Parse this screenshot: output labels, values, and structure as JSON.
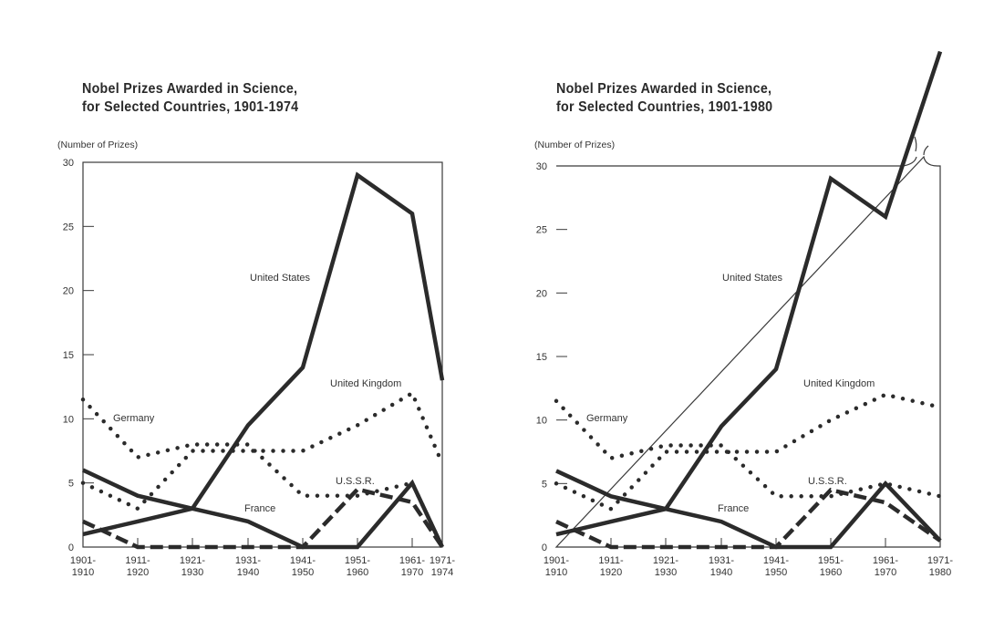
{
  "chart_data": [
    {
      "type": "line",
      "title_line1": "Nobel Prizes Awarded in Science,",
      "title_line2": "for Selected Countries, 1901-1974",
      "ylabel": "(Number of Prizes)",
      "xlabel": "",
      "ylim": [
        0,
        30
      ],
      "yticks": [
        "0",
        "5",
        "10",
        "15",
        "20",
        "25",
        "30"
      ],
      "categories": [
        [
          "1901-",
          "1910"
        ],
        [
          "1911-",
          "1920"
        ],
        [
          "1921-",
          "1930"
        ],
        [
          "1931-",
          "1940"
        ],
        [
          "1941-",
          "1950"
        ],
        [
          "1951-",
          "1960"
        ],
        [
          "1961-",
          "1970"
        ],
        [
          "1971-",
          "1974"
        ]
      ],
      "grid": false,
      "series": [
        {
          "name": "United States",
          "style": "solid",
          "values": [
            1,
            2,
            3,
            9.5,
            14,
            29,
            26,
            13
          ]
        },
        {
          "name": "France",
          "style": "solid",
          "values": [
            6,
            4,
            3,
            2,
            0,
            0,
            5,
            0
          ]
        },
        {
          "name": "Germany",
          "style": "dotted",
          "values": [
            11.5,
            7,
            8,
            8,
            4,
            4,
            5,
            0
          ]
        },
        {
          "name": "United Kingdom",
          "style": "dotted",
          "values": [
            5,
            3,
            7.5,
            7.5,
            7.5,
            9.5,
            12,
            6.5
          ]
        },
        {
          "name": "U.S.S.R.",
          "style": "dashed",
          "values": [
            2,
            0,
            0,
            0,
            0,
            4.5,
            3.5,
            0
          ]
        }
      ]
    },
    {
      "type": "line",
      "title_line1": "Nobel Prizes Awarded in Science,",
      "title_line2": "for Selected Countries, 1901-1980",
      "ylabel": "(Number of Prizes)",
      "xlabel": "",
      "ylim": [
        0,
        30
      ],
      "yticks": [
        "0",
        "5",
        "10",
        "15",
        "20",
        "25",
        "30"
      ],
      "categories": [
        [
          "1901-",
          "1910"
        ],
        [
          "1911-",
          "1920"
        ],
        [
          "1921-",
          "1930"
        ],
        [
          "1931-",
          "1940"
        ],
        [
          "1941-",
          "1950"
        ],
        [
          "1951-",
          "1960"
        ],
        [
          "1961-",
          "1970"
        ],
        [
          "1971-",
          "1980"
        ]
      ],
      "grid": false,
      "annotation": "United States line breaks through top of frame in 1971-1980",
      "series": [
        {
          "name": "United States",
          "style": "solid",
          "values": [
            1,
            2,
            3,
            9.5,
            14,
            29,
            26,
            39
          ]
        },
        {
          "name": "France",
          "style": "solid",
          "values": [
            6,
            4,
            3,
            2,
            0,
            0,
            5,
            0.5
          ]
        },
        {
          "name": "Germany",
          "style": "dotted",
          "values": [
            11.5,
            7,
            8,
            8,
            4,
            4,
            5,
            4
          ]
        },
        {
          "name": "United Kingdom",
          "style": "dotted",
          "values": [
            5,
            3,
            7.5,
            7.5,
            7.5,
            10,
            12,
            11
          ]
        },
        {
          "name": "U.S.S.R.",
          "style": "dashed",
          "values": [
            2,
            0,
            0,
            0,
            0,
            4.5,
            3.5,
            0.5
          ]
        }
      ]
    }
  ],
  "colors": {
    "ink": "#2b2b2b",
    "frame": "#3a3a3a"
  }
}
